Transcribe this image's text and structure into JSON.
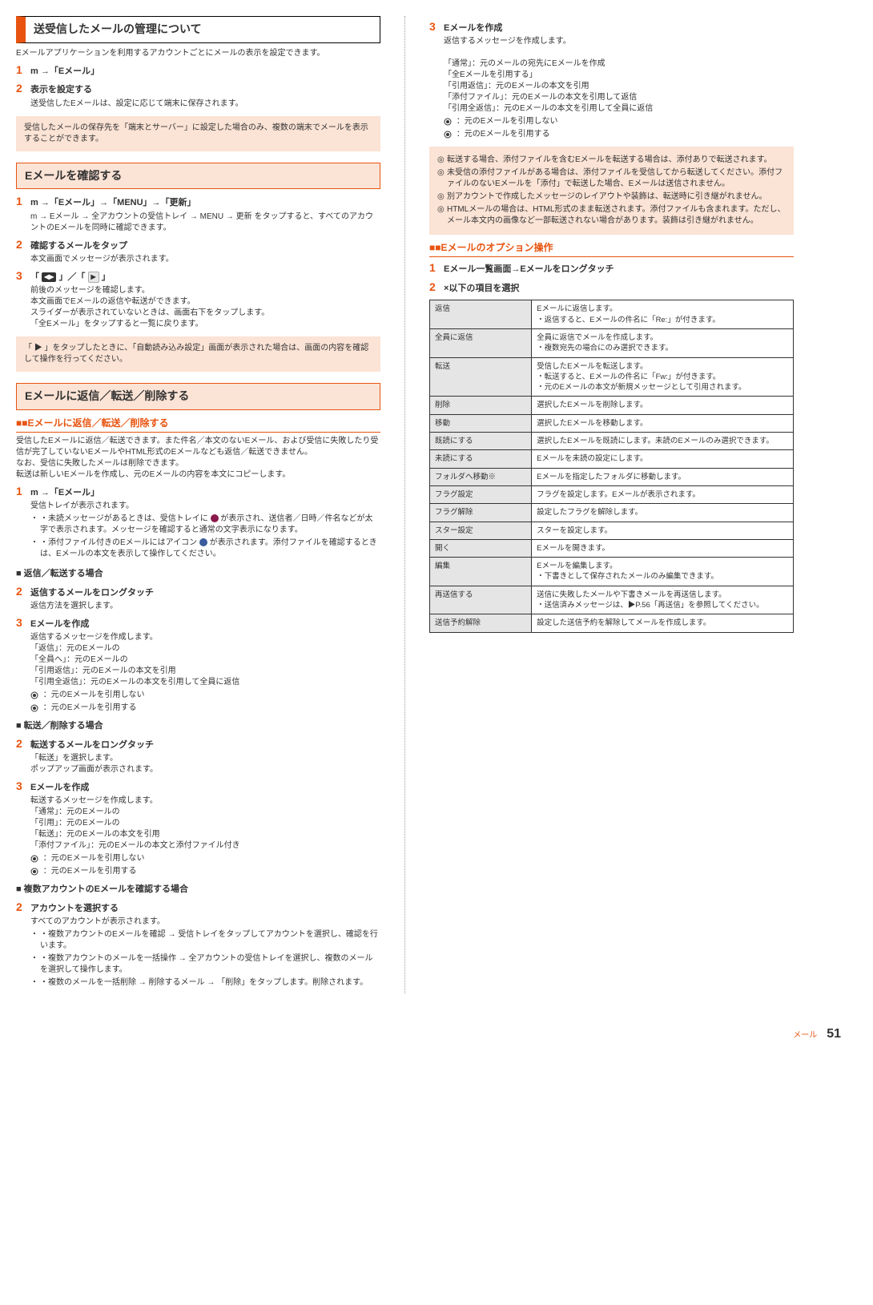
{
  "page": {
    "breadcrumb": "メール",
    "number": "51"
  },
  "left": {
    "h1": "送受信したメールの管理について",
    "h1_desc": "Eメールアプリケーションを利用するアカウントごとにメールの表示を設定できます。",
    "s1_1_title": "m →「Eメール」",
    "s1_2_title": "表示を設定する",
    "s1_2_desc": "送受信したEメールは、設定に応じて端末に保存されます。",
    "callout1": "受信したメールの保存先を「端末とサーバー」に設定した場合のみ、複数の端末でメールを表示することができます。",
    "h2": "Eメールを確認する",
    "s2_1_title_a": "m →「Eメール」→「MENU」→「更新」",
    "s2_1_desc_a": "m → Eメール → 全アカウントの受信トレイ → MENU → 更新 をタップすると、すべてのアカウントのEメールを同時に確認できます。",
    "s2_2_title": "確認するメールをタップ",
    "s2_2_desc": "本文画面でメッセージが表示されます。",
    "s2_3_title_prefix": "「",
    "s2_3_icon1": "◀▶",
    "s2_3_title_mid": "」／「",
    "s2_3_icon2": "▶",
    "s2_3_title_suffix": "」",
    "s2_3_desc": "前後のメッセージを確認します。\n本文画面でEメールの返信や転送ができます。\nスライダーが表示されていないときは、画面右下をタップします。\n「全Eメール」をタップすると一覧に戻ります。",
    "callout2": "「 ▶ 」をタップしたときに、「自動読み込み設定」画面が表示された場合は、画面の内容を確認して操作を行ってください。",
    "h3": "Eメールに返信／転送／削除する",
    "sub_h3": "■Eメールに返信／転送／削除する",
    "h3_body": "受信したEメールに返信／転送できます。また件名／本文のないEメール、および受信に失敗したり受信が完了していないEメールやHTML形式のEメールなども返信／転送できません。\nなお、受信に失敗したメールは削除できます。\n転送は新しいEメールを作成し、元のEメールの内容を本文にコピーします。",
    "s3_1_title": "m →「Eメール」",
    "s3_1_desc": "受信トレイが表示されます。",
    "s3_bullet1_pre": "・未読メッセージがあるときは、受信トレイに",
    "s3_bullet1_post": "が表示され、送信者／日時／件名などが太字で表示されます。メッセージを確認すると通常の文字表示になります。",
    "s3_bullet2_pre": "・添付ファイル付きのEメールにはアイコン",
    "s3_bullet2_post": "が表示されます。添付ファイルを確認するときは、Eメールの本文を表示して操作してください。",
    "sub_reply": "返信／転送する場合",
    "s3_2_title": "返信するメールをロングタッチ",
    "s3_2_desc": "返信方法を選択します。",
    "s3_3_title": "Eメールを作成",
    "s3_3_desc": "返信するメッセージを作成します。\n「返信」：元のEメールの\n「全員へ」：元のEメールの\n「引用返信」：元のEメールの本文を引用\n「引用全返信」：元のEメールの本文を引用して全員に返信",
    "s3_3_r1": "：元のEメールを引用しない",
    "s3_3_r2": "：元のEメールを引用する",
    "sub_fwd": "転送／削除する場合",
    "s3f_2_title": "転送するメールをロングタッチ",
    "s3f_2_desc": "「転送」を選択します。\nポップアップ画面が表示されます。",
    "s3f_3_title": "Eメールを作成",
    "s3f_3_desc": "転送するメッセージを作成します。\n「通常」：元のEメールの\n「引用」：元のEメールの\n「転送」：元のEメールの本文を引用\n「添付ファイル」：元のEメールの本文と添付ファイル付き",
    "s3f_3_r1": "：元のEメールを引用しない",
    "s3f_3_r2": "：元のEメールを引用する",
    "sub_multi": "複数アカウントのEメールを確認する場合",
    "s3m_2_title": "アカウントを選択する",
    "s3m_2_desc": "すべてのアカウントが表示されます。",
    "s3m_b1": "・複数アカウントのEメールを確認 → 受信トレイをタップしてアカウントを選択し、確認を行います。",
    "s3m_b2": "・複数アカウントのメールを一括操作 → 全アカウントの受信トレイを選択し、複数のメールを選択して操作します。",
    "s3m_b3": "・複数のメールを一括削除 → 削除するメール → 「削除」をタップします。削除されます。"
  },
  "right": {
    "s3_title": "Eメールを作成",
    "s3_desc": "返信するメッセージを作成します。\n\n「通常」：元のメールの宛先にEメールを作成\n「全Eメールを引用する」\n「引用返信」：元のEメールの本文を引用\n「添付ファイル」：元のEメールの本文を引用して返信\n「引用全返信」：元のEメールの本文を引用して全員に返信",
    "s3_r1": "：元のEメールを引用しない",
    "s3_r2": "：元のEメールを引用する",
    "callout_lines": [
      "転送する場合、添付ファイルを含むEメールを転送する場合は、添付ありで転送されます。",
      "未受信の添付ファイルがある場合は、添付ファイルを受信してから転送してください。添付ファイルのないEメールを「添付」で転送した場合、Eメールは送信されません。",
      "別アカウントで作成したメッセージのレイアウトや装飾は、転送時に引き継がれません。",
      "HTMLメールの場合は、HTML形式のまま転送されます。添付ファイルも含まれます。ただし、メール本文内の画像など一部転送されない場合があります。装飾は引き継がれません。"
    ],
    "sub_opt": "■Eメールのオプション操作",
    "s_opt_1": "Eメール一覧画面→Eメールをロングタッチ",
    "s_opt_2": "×以下の項目を選択",
    "table": {
      "rows": [
        [
          "返信",
          "Eメールに返信します。\n・返信すると、Eメールの件名に「Re:」が付きます。"
        ],
        [
          "全員に返信",
          "全員に返信でメールを作成します。\n・複数宛先の場合にのみ選択できます。"
        ],
        [
          "転送",
          "受信したEメールを転送します。\n・転送すると、Eメールの件名に「Fw:」が付きます。\n・元のEメールの本文が新規メッセージとして引用されます。"
        ],
        [
          "削除",
          "選択したEメールを削除します。"
        ],
        [
          "移動",
          "選択したEメールを移動します。"
        ],
        [
          "既読にする",
          "選択したEメールを既読にします。未読のEメールのみ選択できます。"
        ],
        [
          "未読にする",
          "Eメールを未読の設定にします。"
        ],
        [
          "フォルダへ移動※",
          "Eメールを指定したフォルダに移動します。"
        ],
        [
          "フラグ設定",
          "フラグを設定します。Eメールが表示されます。"
        ],
        [
          "フラグ解除",
          "設定したフラグを解除します。"
        ],
        [
          "スター設定",
          "スターを設定します。"
        ],
        [
          "開く",
          "Eメールを開きます。"
        ],
        [
          "編集",
          "Eメールを編集します。\n・下書きとして保存されたメールのみ編集できます。"
        ],
        [
          "再送信する",
          "送信に失敗したメールや下書きメールを再送信します。\n・送信済みメッセージは、▶P.56「再送信」を参照してください。"
        ],
        [
          "送信予約解除",
          "設定した送信予約を解除してメールを作成します。"
        ]
      ],
      "label_bg": "#e5e5e5",
      "border_color": "#333333"
    }
  },
  "colors": {
    "accent": "#e85410",
    "callout_bg": "#fbe3d5"
  }
}
